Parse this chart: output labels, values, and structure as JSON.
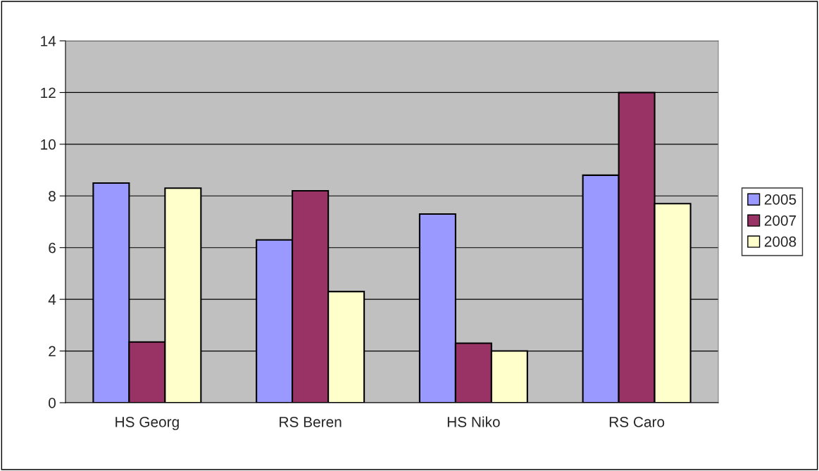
{
  "chart_data": {
    "type": "bar",
    "categories": [
      "HS Georg",
      "RS Beren",
      "HS Niko",
      "RS Caro"
    ],
    "series": [
      {
        "name": "2005",
        "color": "#9999ff",
        "values": [
          8.5,
          6.3,
          7.3,
          8.8
        ]
      },
      {
        "name": "2007",
        "color": "#993366",
        "values": [
          2.35,
          8.2,
          2.3,
          12.0
        ]
      },
      {
        "name": "2008",
        "color": "#ffffcc",
        "values": [
          8.3,
          4.3,
          2.0,
          7.7
        ]
      }
    ],
    "ylim": [
      0,
      14
    ],
    "yticks": [
      0,
      2,
      4,
      6,
      8,
      10,
      12,
      14
    ],
    "grid": "y",
    "legend": "right"
  }
}
